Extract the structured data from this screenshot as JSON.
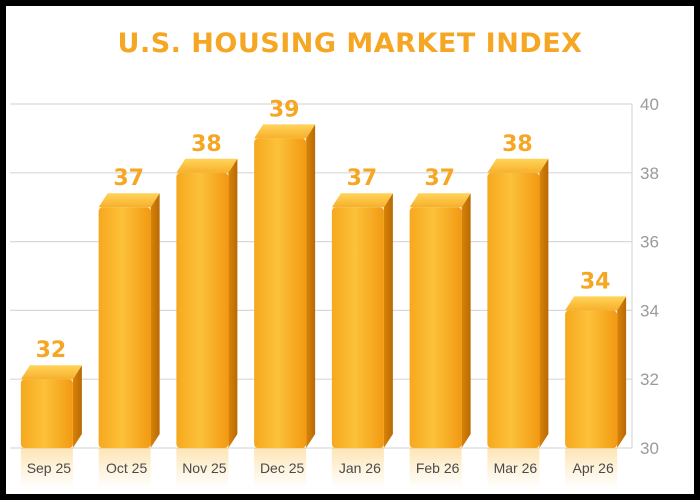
{
  "chart_data": {
    "type": "bar",
    "title": "U.S. HOUSING MARKET INDEX",
    "xlabel": "",
    "ylabel": "",
    "categories": [
      "Sep 25",
      "Oct 25",
      "Nov 25",
      "Dec 25",
      "Jan 26",
      "Feb 26",
      "Mar 26",
      "Apr 26"
    ],
    "values": [
      32,
      37,
      38,
      39,
      37,
      37,
      38,
      34
    ],
    "ylim": [
      30,
      40
    ],
    "yticks": [
      30,
      32,
      34,
      36,
      38,
      40
    ],
    "y_axis_side": "right",
    "grid": true,
    "legend": "none",
    "bar_color": "#f9b52d",
    "label_color": "#f5a623"
  }
}
